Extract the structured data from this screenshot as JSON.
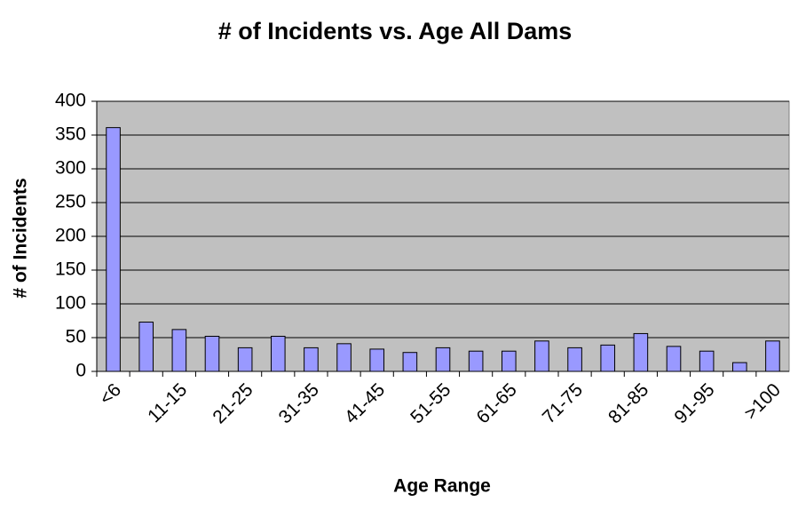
{
  "chart_data": {
    "type": "bar",
    "title": "# of Incidents vs. Age All Dams",
    "x_label": "Age Range",
    "y_label": "# of Incidents",
    "categories": [
      "<6",
      null,
      "11-15",
      null,
      "21-25",
      null,
      "31-35",
      null,
      "41-45",
      null,
      "51-55",
      null,
      "61-65",
      null,
      "71-75",
      null,
      "81-85",
      null,
      "91-95",
      null,
      ">100"
    ],
    "values": [
      361,
      73,
      62,
      52,
      35,
      52,
      35,
      41,
      33,
      28,
      35,
      30,
      30,
      45,
      35,
      39,
      56,
      37,
      30,
      13,
      45
    ],
    "color": "#9999ff",
    "background": "#c0c0c0",
    "ylim": [
      0,
      400
    ],
    "yticks": [
      0,
      50,
      100,
      150,
      200,
      250,
      300,
      350,
      400
    ],
    "grid": true
  }
}
